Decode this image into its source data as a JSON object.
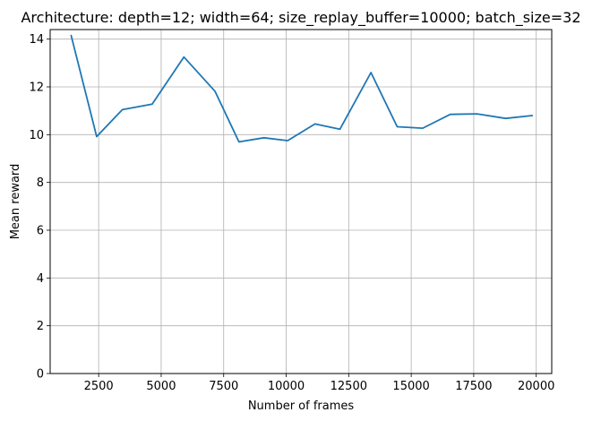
{
  "chart_data": {
    "type": "line",
    "title": "Architecture: depth=12; width=64; size_replay_buffer=10000; batch_size=32",
    "xlabel": "Number of frames",
    "ylabel": "Mean reward",
    "grid": true,
    "xlim": [
      560,
      20620
    ],
    "ylim": [
      0,
      14.4
    ],
    "xticks": [
      2500,
      5000,
      7500,
      10000,
      12500,
      15000,
      17500,
      20000
    ],
    "xtick_labels": [
      "2500",
      "5000",
      "7500",
      "10000",
      "12500",
      "15000",
      "17500",
      "20000"
    ],
    "yticks": [
      0,
      2,
      4,
      6,
      8,
      10,
      12,
      14
    ],
    "ytick_labels": [
      "0",
      "2",
      "4",
      "6",
      "8",
      "10",
      "12",
      "14"
    ],
    "series": [
      {
        "color": "#1f77b4",
        "x": [
          1400,
          2420,
          3450,
          4640,
          5910,
          7150,
          8110,
          9110,
          10060,
          11150,
          12150,
          13390,
          14440,
          15460,
          16560,
          17630,
          18780,
          19840
        ],
        "y": [
          14.15,
          9.92,
          11.05,
          11.28,
          13.25,
          11.82,
          9.7,
          9.87,
          9.75,
          10.45,
          10.23,
          12.6,
          10.33,
          10.27,
          10.85,
          10.87,
          10.68,
          10.8
        ]
      }
    ]
  }
}
